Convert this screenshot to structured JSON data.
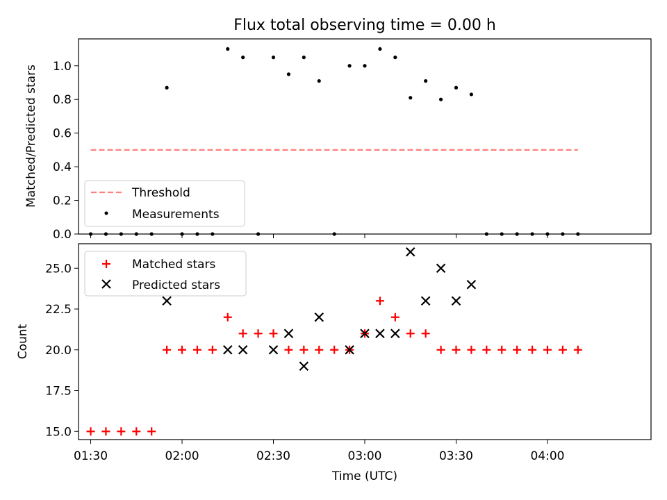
{
  "colors": {
    "threshold": "#ff7f7f",
    "measurement": "#000000",
    "matched": "#ff0000",
    "predicted": "#000000"
  },
  "chart_data": [
    {
      "type": "scatter",
      "title": "Flux total observing time = 0.00 h",
      "xlabel": "",
      "ylabel": "Matched/Predicted stars",
      "xlim": [
        "01:26",
        "04:34"
      ],
      "ylim": [
        0,
        1.16
      ],
      "yticks": [
        "0.0",
        "0.2",
        "0.4",
        "0.6",
        "0.8",
        "1.0"
      ],
      "ytick_values": [
        0,
        0.2,
        0.4,
        0.6,
        0.8,
        1.0
      ],
      "legend_position": "bottom-left",
      "threshold": {
        "name": "Threshold",
        "style": "dashed",
        "x": [
          "01:30",
          "04:10"
        ],
        "y": 0.5
      },
      "series": [
        {
          "name": "Measurements",
          "x": [
            "01:30",
            "01:35",
            "01:40",
            "01:45",
            "01:50",
            "01:55",
            "02:00",
            "02:05",
            "02:10",
            "02:15",
            "02:20",
            "02:25",
            "02:30",
            "02:35",
            "02:40",
            "02:45",
            "02:50",
            "02:55",
            "03:00",
            "03:05",
            "03:10",
            "03:15",
            "03:20",
            "03:25",
            "03:30",
            "03:35",
            "03:40",
            "03:45",
            "03:50",
            "03:55",
            "04:00",
            "04:05",
            "04:10"
          ],
          "y": [
            0,
            0,
            0,
            0,
            0,
            0.87,
            0,
            0,
            0,
            1.1,
            1.05,
            0,
            1.05,
            0.95,
            1.05,
            0.91,
            0,
            1.0,
            1.0,
            1.1,
            1.05,
            0.81,
            0.91,
            0.8,
            0.87,
            0.83,
            0,
            0,
            0,
            0,
            0,
            0,
            0
          ]
        }
      ]
    },
    {
      "type": "scatter",
      "title": "",
      "xlabel": "Time (UTC)",
      "ylabel": "Count",
      "xlim": [
        "01:26",
        "04:34"
      ],
      "xticks": [
        "01:30",
        "02:00",
        "02:30",
        "03:00",
        "03:30",
        "04:00"
      ],
      "ylim": [
        14.5,
        26.5
      ],
      "yticks": [
        "15.0",
        "17.5",
        "20.0",
        "22.5",
        "25.0"
      ],
      "ytick_values": [
        15,
        17.5,
        20,
        22.5,
        25
      ],
      "legend_position": "top-left",
      "series": [
        {
          "name": "Matched stars",
          "marker": "+",
          "x": [
            "01:30",
            "01:35",
            "01:40",
            "01:45",
            "01:50",
            "01:55",
            "02:00",
            "02:05",
            "02:10",
            "02:15",
            "02:20",
            "02:25",
            "02:30",
            "02:35",
            "02:40",
            "02:45",
            "02:50",
            "02:55",
            "03:00",
            "03:05",
            "03:10",
            "03:15",
            "03:20",
            "03:25",
            "03:30",
            "03:35",
            "03:40",
            "03:45",
            "03:50",
            "03:55",
            "04:00",
            "04:05",
            "04:10"
          ],
          "y": [
            15,
            15,
            15,
            15,
            15,
            20,
            20,
            20,
            20,
            22,
            21,
            21,
            21,
            20,
            20,
            20,
            20,
            20,
            21,
            23,
            22,
            21,
            21,
            20,
            20,
            20,
            20,
            20,
            20,
            20,
            20,
            20,
            20
          ]
        },
        {
          "name": "Predicted stars",
          "marker": "x",
          "x": [
            "01:55",
            "02:15",
            "02:20",
            "02:30",
            "02:35",
            "02:40",
            "02:45",
            "02:55",
            "03:00",
            "03:05",
            "03:10",
            "03:15",
            "03:20",
            "03:25",
            "03:30",
            "03:35"
          ],
          "y": [
            23,
            20,
            20,
            20,
            21,
            19,
            22,
            20,
            21,
            21,
            21,
            26,
            23,
            25,
            23,
            24
          ]
        }
      ]
    }
  ]
}
